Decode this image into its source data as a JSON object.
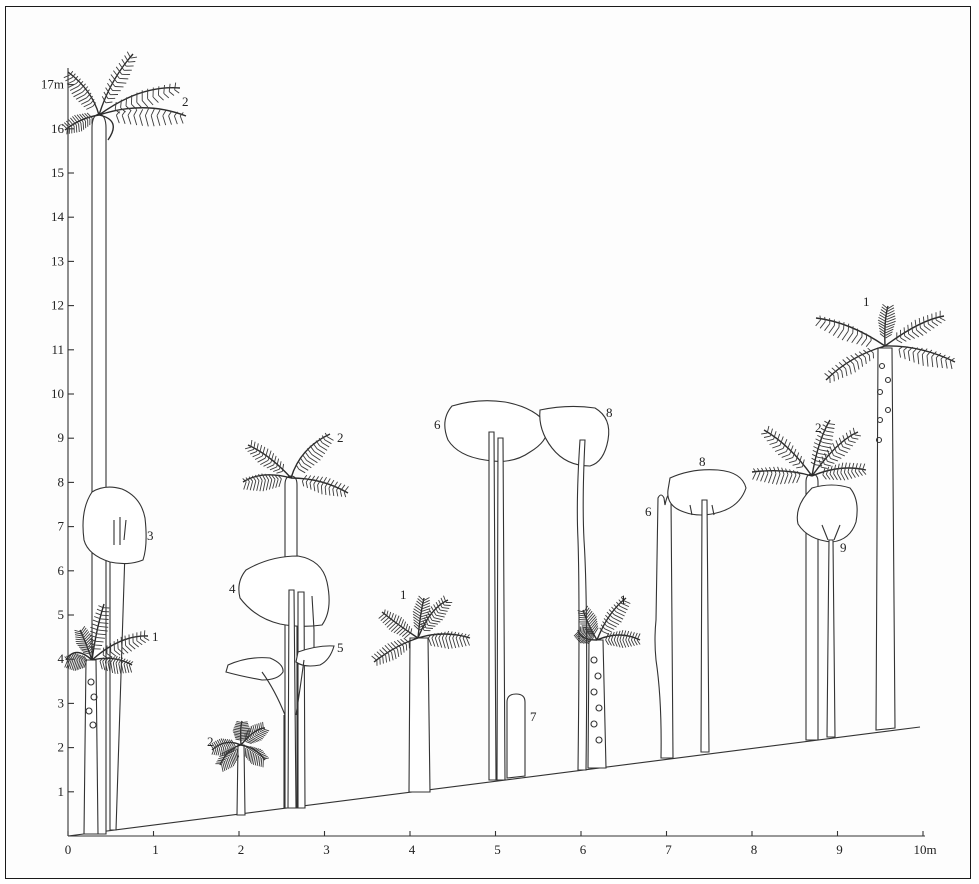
{
  "diagram": {
    "y_axis": {
      "ticks": [
        "1",
        "2",
        "3",
        "4",
        "5",
        "6",
        "7",
        "8",
        "9",
        "10",
        "11",
        "12",
        "13",
        "14",
        "15",
        "16",
        "17m"
      ]
    },
    "x_axis": {
      "ticks": [
        "0",
        "1",
        "2",
        "3",
        "4",
        "5",
        "6",
        "7",
        "8",
        "9",
        "10m"
      ]
    },
    "plant_labels": [
      "2",
      "3",
      "1",
      "2",
      "4",
      "5",
      "2",
      "1",
      "6",
      "7",
      "8",
      "1",
      "6",
      "8",
      "2",
      "9",
      "1"
    ]
  }
}
